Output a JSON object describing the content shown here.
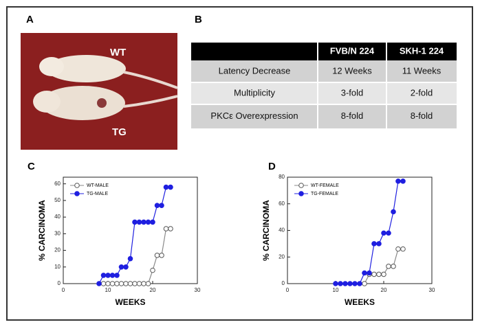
{
  "panels": {
    "a": "A",
    "b": "B",
    "c": "C",
    "d": "D"
  },
  "photo": {
    "labels": [
      "WT",
      "TG"
    ]
  },
  "table": {
    "header": [
      "FVB/N 224",
      "SKH-1 224"
    ],
    "rows": [
      [
        "Latency Decrease",
        "12 Weeks",
        "11 Weeks"
      ],
      [
        "Multiplicity",
        "3-fold",
        "2-fold"
      ],
      [
        "PKCε Overexpression",
        "8-fold",
        "8-fold"
      ]
    ]
  },
  "chart_data": [
    {
      "type": "line",
      "xlabel": "WEEKS",
      "ylabel": "% CARCINOMA",
      "xlim": [
        0,
        30
      ],
      "xticks": [
        0,
        10,
        20,
        30
      ],
      "ylim": [
        0,
        64
      ],
      "yticks": [
        0,
        10,
        20,
        30,
        40,
        50,
        60
      ],
      "legend": "upper left",
      "series": [
        {
          "name": "WT-MALE",
          "color": "#888888",
          "marker": "open",
          "x": [
            9,
            10,
            11,
            12,
            13,
            14,
            15,
            16,
            17,
            18,
            19,
            20,
            21,
            22,
            23,
            24
          ],
          "values": [
            0,
            0,
            0,
            0,
            0,
            0,
            0,
            0,
            0,
            0,
            0,
            8,
            17,
            17,
            33,
            33
          ]
        },
        {
          "name": "TG-MALE",
          "color": "#1f1fe0",
          "marker": "filled",
          "x": [
            8,
            9,
            10,
            11,
            12,
            13,
            14,
            15,
            16,
            17,
            18,
            19,
            20,
            21,
            22,
            23,
            24
          ],
          "values": [
            0,
            5,
            5,
            5,
            5,
            10,
            10,
            15,
            37,
            37,
            37,
            37,
            37,
            47,
            47,
            58,
            58
          ]
        }
      ]
    },
    {
      "type": "line",
      "xlabel": "WEEKS",
      "ylabel": "% CARCINOMA",
      "xlim": [
        0,
        30
      ],
      "xticks": [
        0,
        10,
        20,
        30
      ],
      "ylim": [
        0,
        80
      ],
      "yticks": [
        0,
        20,
        40,
        60,
        80
      ],
      "legend": "upper left",
      "series": [
        {
          "name": "WT-FEMALE",
          "color": "#888888",
          "marker": "open",
          "x": [
            16,
            17,
            18,
            19,
            20,
            21,
            22,
            23,
            24
          ],
          "values": [
            0,
            7,
            7,
            7,
            7,
            13,
            13,
            26,
            26
          ]
        },
        {
          "name": "TG-FEMALE",
          "color": "#1f1fe0",
          "marker": "filled",
          "x": [
            10,
            11,
            12,
            13,
            14,
            15,
            16,
            17,
            18,
            19,
            20,
            21,
            22,
            23,
            24
          ],
          "values": [
            0,
            0,
            0,
            0,
            0,
            0,
            8,
            8,
            30,
            30,
            38,
            38,
            54,
            77,
            77
          ]
        }
      ]
    }
  ]
}
